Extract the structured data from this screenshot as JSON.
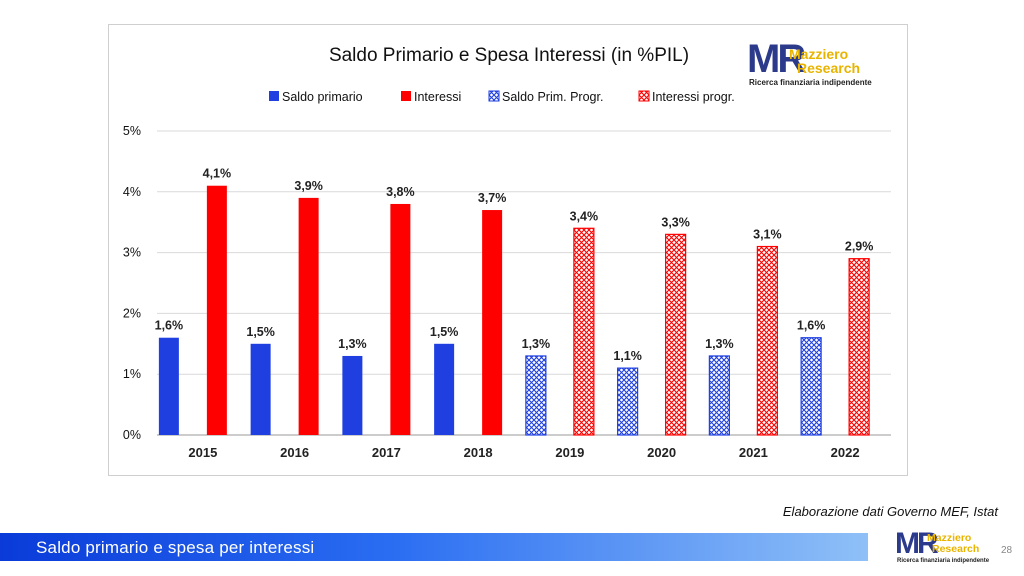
{
  "chart_data": {
    "type": "bar",
    "title": "Saldo Primario e Spesa Interessi (in %PIL)",
    "categories": [
      "2015",
      "2016",
      "2017",
      "2018",
      "2019",
      "2020",
      "2021",
      "2022"
    ],
    "series": [
      {
        "name": "Saldo primario",
        "values": [
          1.6,
          1.5,
          1.3,
          1.5,
          null,
          null,
          null,
          null
        ],
        "labels": [
          "1,6%",
          "1,5%",
          "1,3%",
          "1,5%",
          null,
          null,
          null,
          null
        ],
        "color": "#1f3fe0",
        "pattern": "solid"
      },
      {
        "name": "Interessi",
        "values": [
          4.1,
          3.9,
          3.8,
          3.7,
          null,
          null,
          null,
          null
        ],
        "labels": [
          "4,1%",
          "3,9%",
          "3,8%",
          "3,7%",
          null,
          null,
          null,
          null
        ],
        "color": "#ff0000",
        "pattern": "solid"
      },
      {
        "name": "Saldo Prim. Progr.",
        "values": [
          null,
          null,
          null,
          null,
          1.3,
          1.1,
          1.3,
          1.6
        ],
        "labels": [
          null,
          null,
          null,
          null,
          "1,3%",
          "1,1%",
          "1,3%",
          "1,6%"
        ],
        "color": "#1f3fe0",
        "pattern": "hatched"
      },
      {
        "name": "Interessi progr.",
        "values": [
          null,
          null,
          null,
          null,
          3.4,
          3.3,
          3.1,
          2.9
        ],
        "labels": [
          null,
          null,
          null,
          null,
          "3,4%",
          "3,3%",
          "3,1%",
          "2,9%"
        ],
        "color": "#ff0000",
        "pattern": "hatched"
      }
    ],
    "y_ticks": [
      "0%",
      "1%",
      "2%",
      "3%",
      "4%",
      "5%"
    ],
    "ylim": [
      0,
      5
    ],
    "grid": true,
    "legend_position": "top"
  },
  "logo": {
    "brand": "Mazziero",
    "brand2": "Research",
    "tagline": "Ricerca finanziaria indipendente"
  },
  "source": "Elaborazione dati Governo MEF, Istat",
  "footer": {
    "title": "Saldo primario e spesa per interessi",
    "page": "28"
  }
}
